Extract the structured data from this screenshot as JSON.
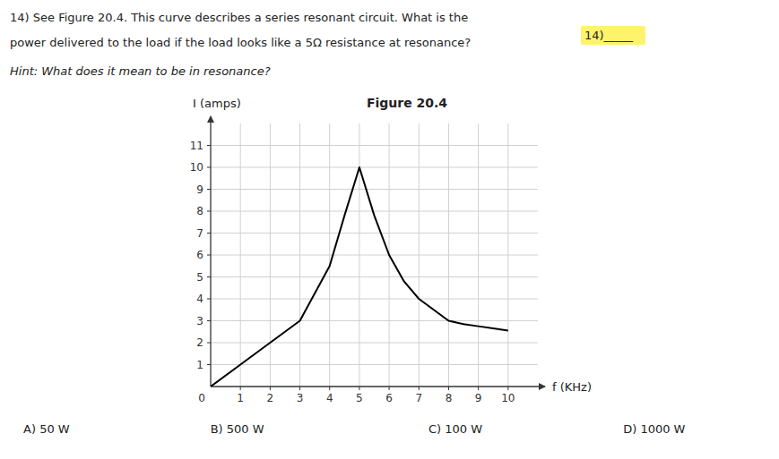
{
  "chart_data": {
    "type": "line",
    "title": "Figure 20.4",
    "x_label": "f (KHz)",
    "y_label": "I (amps)",
    "x": [
      0.0,
      1.0,
      2.0,
      3.0,
      4.0,
      4.5,
      5.0,
      5.5,
      6.0,
      6.5,
      7.0,
      7.5,
      8.0,
      8.5,
      9.0,
      9.5,
      10.0
    ],
    "values": [
      0.0,
      1.0,
      2.0,
      3.0,
      5.5,
      7.8,
      10.0,
      7.8,
      6.0,
      4.8,
      4.0,
      3.5,
      3.0,
      2.85,
      2.75,
      2.65,
      2.55
    ],
    "color": "#000000",
    "xlim": [
      0,
      11
    ],
    "ylim": [
      0,
      12
    ],
    "xticks": [
      1,
      2,
      3,
      4,
      5,
      6,
      7,
      8,
      9,
      10
    ],
    "yticks": [
      1,
      2,
      3,
      4,
      5,
      6,
      7,
      8,
      9,
      10,
      11
    ],
    "grid": true,
    "annotations": [
      "14) See Figure 20.4. This curve describes a series resonant circuit. What is the",
      "power delivered to the load if the load looks like a 5Ω resistance at resonance?",
      "Hint: What does it mean to be in resonance?",
      "14)_____",
      "0",
      "A) 50 W",
      "B) 500 W",
      "C) 100 W",
      "D) 1000 W"
    ]
  }
}
